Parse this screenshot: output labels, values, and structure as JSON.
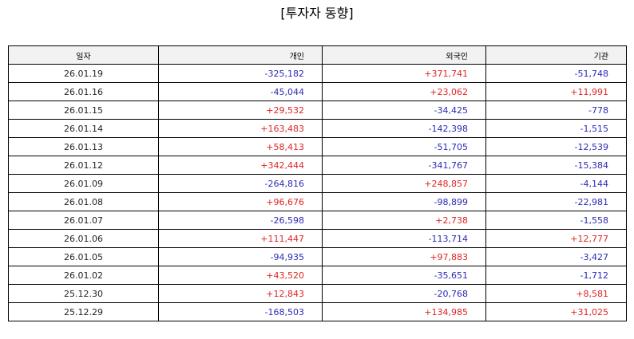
{
  "title": "[투자자 동향]",
  "colors": {
    "positive": "#e02424",
    "negative": "#2a2ab8",
    "header_bg": "#f2f2f2"
  },
  "table": {
    "headers": [
      "일자",
      "개인",
      "외국인",
      "기관"
    ],
    "rows": [
      [
        "26.01.19",
        "-325,182",
        "+371,741",
        "-51,748"
      ],
      [
        "26.01.16",
        "-45,044",
        "+23,062",
        "+11,991"
      ],
      [
        "26.01.15",
        "+29,532",
        "-34,425",
        "-778"
      ],
      [
        "26.01.14",
        "+163,483",
        "-142,398",
        "-1,515"
      ],
      [
        "26.01.13",
        "+58,413",
        "-51,705",
        "-12,539"
      ],
      [
        "26.01.12",
        "+342,444",
        "-341,767",
        "-15,384"
      ],
      [
        "26.01.09",
        "-264,816",
        "+248,857",
        "-4,144"
      ],
      [
        "26.01.08",
        "+96,676",
        "-98,899",
        "-22,981"
      ],
      [
        "26.01.07",
        "-26,598",
        "+2,738",
        "-1,558"
      ],
      [
        "26.01.06",
        "+111,447",
        "-113,714",
        "+12,777"
      ],
      [
        "26.01.05",
        "-94,935",
        "+97,883",
        "-3,427"
      ],
      [
        "26.01.02",
        "+43,520",
        "-35,651",
        "-1,712"
      ],
      [
        "25.12.30",
        "+12,843",
        "-20,768",
        "+8,581"
      ],
      [
        "25.12.29",
        "-168,503",
        "+134,985",
        "+31,025"
      ]
    ]
  }
}
